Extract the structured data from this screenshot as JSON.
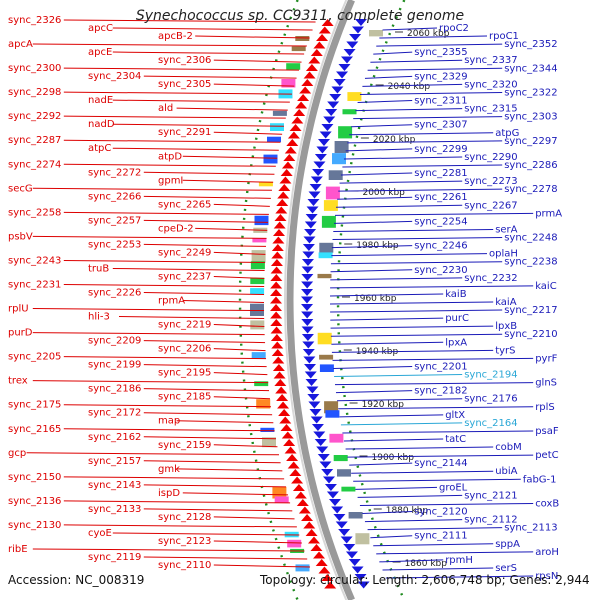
{
  "title": "Synechococcus sp. CC9311, complete genome",
  "footer": {
    "accession": "Accession: NC_008319",
    "topology": "Topology: circular; Length: 2,606,748 bp; Genes: 2,944"
  },
  "colors": {
    "left_labels": "#dd0000",
    "right_labels": "#1a1ab8",
    "highlight": "#2aa7d6"
  },
  "kbp_ticks": [
    "2060 kbp",
    "2040 kbp",
    "2020 kbp",
    "2000 kbp",
    "1980 kbp",
    "1960 kbp",
    "1940 kbp",
    "1920 kbp",
    "1900 kbp",
    "1880 kbp",
    "1860 kbp"
  ],
  "left_labels": [
    "sync_2326",
    "apcC",
    "apcB-2",
    "apcA",
    "apcE",
    "sync_2306",
    "sync_2300",
    "sync_2304",
    "sync_2305",
    "sync_2298",
    "nadE",
    "ald",
    "sync_2292",
    "nadD",
    "sync_2291",
    "sync_2287",
    "atpC",
    "atpD",
    "sync_2274",
    "sync_2272",
    "gpmI",
    "secG",
    "sync_2266",
    "sync_2265",
    "sync_2258",
    "sync_2257",
    "cpeD-2",
    "psbV",
    "sync_2253",
    "sync_2249",
    "sync_2243",
    "truB",
    "sync_2237",
    "sync_2231",
    "sync_2226",
    "rpmA",
    "rplU",
    "hli-3",
    "sync_2219",
    "purD",
    "sync_2209",
    "sync_2206",
    "sync_2205",
    "sync_2199",
    "sync_2195",
    "trex",
    "sync_2186",
    "sync_2185",
    "sync_2175",
    "sync_2172",
    "map",
    "sync_2165",
    "sync_2162",
    "sync_2159",
    "gcp",
    "sync_2157",
    "gmk",
    "sync_2150",
    "sync_2143",
    "ispD",
    "sync_2136",
    "sync_2133",
    "sync_2128",
    "sync_2130",
    "cyoE",
    "sync_2123",
    "ribE",
    "sync_2119",
    "sync_2110"
  ],
  "right_labels": [
    "rpoC2",
    "rpoC1",
    "sync_2352",
    "sync_2355",
    "sync_2337",
    "sync_2344",
    "sync_2329",
    "sync_2320",
    "sync_2322",
    "sync_2311",
    "sync_2315",
    "sync_2303",
    "sync_2307",
    "atpG",
    "sync_2297",
    "sync_2299",
    "sync_2290",
    "sync_2286",
    "sync_2281",
    "sync_2273",
    "sync_2278",
    "sync_2261",
    "sync_2267",
    "prmA",
    "sync_2254",
    "serA",
    "sync_2248",
    "sync_2246",
    "oplaH",
    "sync_2238",
    "sync_2230",
    "sync_2232",
    "kaiC",
    "kaiB",
    "kaiA",
    "sync_2217",
    "purC",
    "lpxB",
    "sync_2210",
    "lpxA",
    "tyrS",
    "pyrF",
    "sync_2201",
    "sync_2194",
    "glnS",
    "sync_2182",
    "sync_2176",
    "rplS",
    "gltX",
    "sync_2164",
    "psaF",
    "tatC",
    "cobM",
    "petC",
    "sync_2144",
    "ubiA",
    "fabG-1",
    "groEL",
    "sync_2121",
    "coxB",
    "sync_2120",
    "sync_2112",
    "sync_2113",
    "sync_2111",
    "sppA",
    "aroH",
    "rpmH",
    "serS",
    "rpsN"
  ]
}
